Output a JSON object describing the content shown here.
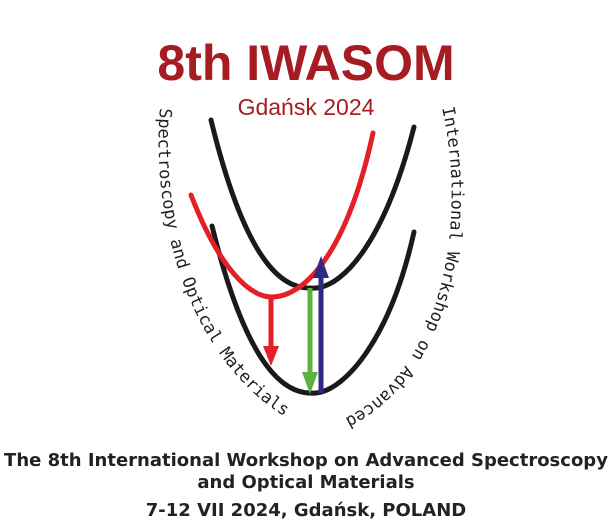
{
  "header": {
    "title": "8th IWASOM",
    "subtitle": "Gdańsk 2024"
  },
  "logo": {
    "left_arc_text": "Spectroscopy and Optical Materials",
    "right_arc_text": "International Workshop on Advanced",
    "colors": {
      "curves": "#1a1a1a",
      "red": "#e41f26",
      "green": "#5ab33e",
      "blue": "#2e2a7f"
    }
  },
  "footer": {
    "full_name": "The 8th International Workshop on Advanced Spectroscopy and Optical Materials",
    "dates_location": "7-12 VII 2024, Gdańsk, POLAND"
  }
}
